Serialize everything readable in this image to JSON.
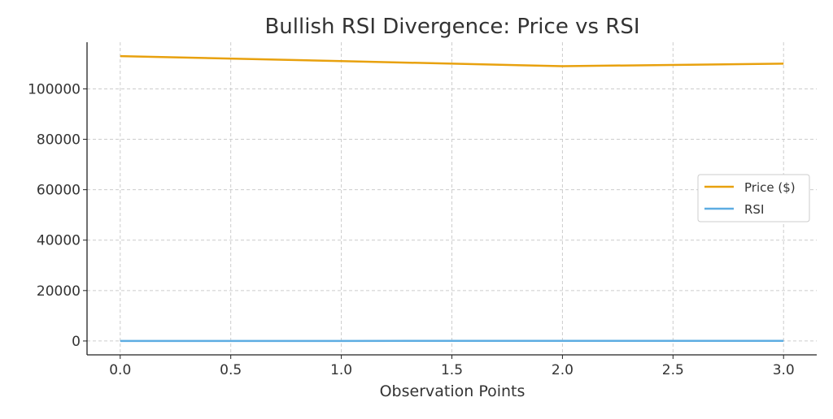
{
  "chart_data": {
    "type": "line",
    "title": "Bullish RSI Divergence: Price vs RSI",
    "xlabel": "Observation Points",
    "ylabel": "",
    "x": [
      0,
      1,
      2,
      3
    ],
    "series": [
      {
        "name": "Price ($)",
        "values": [
          113000,
          111000,
          109000,
          110000
        ],
        "color": "#E8A10E"
      },
      {
        "name": "RSI",
        "values": [
          30,
          35,
          38,
          42
        ],
        "color": "#5DADE2"
      }
    ],
    "xlim": [
      -0.15,
      3.15
    ],
    "ylim": [
      -5500,
      118500
    ],
    "xticks": [
      "0.0",
      "0.5",
      "1.0",
      "1.5",
      "2.0",
      "2.5",
      "3.0"
    ],
    "yticks": [
      "0",
      "20000",
      "40000",
      "60000",
      "80000",
      "100000"
    ],
    "grid": true,
    "legend_position": "center-right"
  }
}
